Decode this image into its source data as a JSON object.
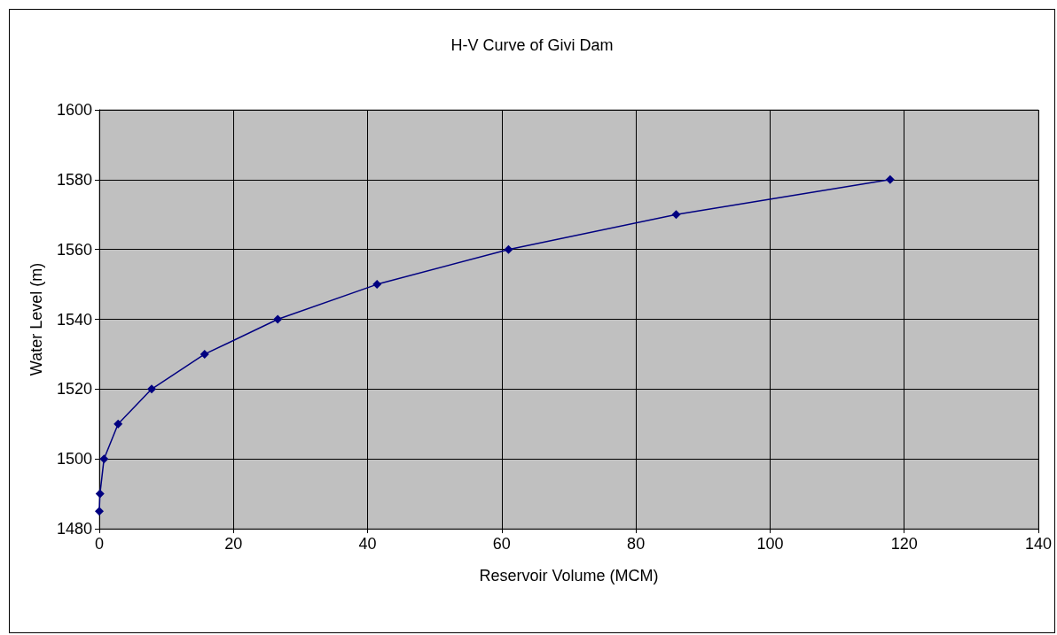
{
  "chart_data": {
    "type": "line",
    "title": "H-V Curve of Givi Dam",
    "xlabel": "Reservoir Volume (MCM)",
    "ylabel": "Water Level (m)",
    "x": [
      0,
      0.1,
      0.7,
      2.8,
      7.8,
      15.7,
      26.6,
      41.4,
      61.0,
      86.0,
      117.9
    ],
    "series": [
      {
        "color": "#000080",
        "values": [
          1485,
          1490,
          1500,
          1510,
          1520,
          1530,
          1540,
          1550,
          1560,
          1570,
          1580
        ]
      }
    ],
    "xlim": [
      0,
      140
    ],
    "xticks": [
      0,
      20,
      40,
      60,
      80,
      100,
      120,
      140
    ],
    "ylim": [
      1480,
      1600
    ],
    "yticks": [
      1480,
      1500,
      1520,
      1540,
      1560,
      1580,
      1600
    ],
    "grid": true,
    "marker": "diamond",
    "line_style": "solid"
  }
}
